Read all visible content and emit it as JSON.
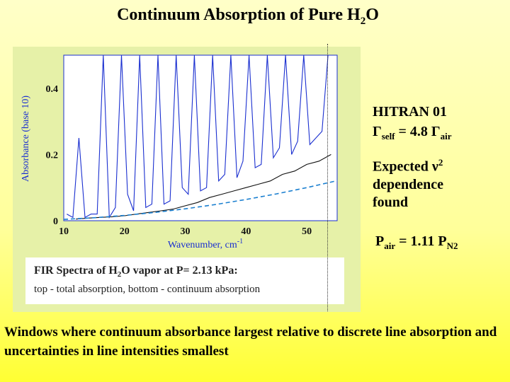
{
  "slide": {
    "title_prefix": "Continuum Absorption of Pure H",
    "title_sub": "2",
    "title_suffix": "O",
    "caption": {
      "line1_prefix": "FIR Spectra of H",
      "line1_sub": "2",
      "line1_suffix": "O vapor at P= 2.13 kPa:",
      "line2": "top - total absorption, bottom - continuum absorption"
    },
    "notes": {
      "hitran": "HITRAN 01",
      "gamma_prefix": "Γ",
      "gamma_sub1": "self",
      "gamma_mid": " = 4.8 Γ",
      "gamma_sub2": "air",
      "expected_prefix": "Expected ν",
      "expected_sup": "2",
      "expected_line2": "dependence",
      "expected_line3": "found",
      "pair_prefix": "P",
      "pair_sub1": "air",
      "pair_mid": " = 1.11 P",
      "pair_sub2": "N2"
    },
    "bottom_text": "Windows where continuum absorbance largest relative to discrete line absorption and uncertainties in line intensities smallest"
  },
  "chart_data": {
    "type": "line",
    "xlabel": "Wavenumber, cm",
    "xlabel_sup": "-1",
    "ylabel": "Absorbance (base 10)",
    "xlim": [
      10,
      55
    ],
    "ylim": [
      0,
      0.5
    ],
    "xticks": [
      "10",
      "20",
      "30",
      "40",
      "50"
    ],
    "yticks": [
      "0",
      "0.2",
      "0.4"
    ],
    "series": [
      {
        "color": "#1a2fd0",
        "x": [
          10.5,
          11.5,
          12.5,
          13.5,
          14.5,
          15.5,
          16.5,
          17.5,
          18.5,
          19.5,
          20.5,
          21.5,
          22.5,
          23.5,
          24.5,
          25.5,
          26.5,
          27.5,
          28.5,
          29.5,
          30.5,
          31.5,
          32.5,
          33.5,
          34.5,
          35.5,
          36.5,
          37.5,
          38.5,
          39.5,
          40.5,
          41.5,
          42.5,
          43.5,
          44.5,
          45.5,
          46.5,
          47.5,
          48.5,
          49.5,
          50.5,
          51.5,
          52.5,
          53.5
        ],
        "y": [
          0.02,
          0.01,
          0.25,
          0.01,
          0.02,
          0.02,
          0.5,
          0.01,
          0.04,
          0.5,
          0.08,
          0.03,
          0.5,
          0.04,
          0.05,
          0.5,
          0.05,
          0.06,
          0.5,
          0.1,
          0.08,
          0.5,
          0.09,
          0.1,
          0.5,
          0.12,
          0.14,
          0.5,
          0.13,
          0.18,
          0.5,
          0.16,
          0.17,
          0.5,
          0.19,
          0.22,
          0.5,
          0.2,
          0.24,
          0.5,
          0.23,
          0.25,
          0.27,
          0.5
        ]
      },
      {
        "color": "#111111",
        "x": [
          12,
          14,
          16,
          18,
          20,
          22,
          24,
          26,
          28,
          30,
          32,
          34,
          36,
          38,
          40,
          42,
          44,
          46,
          48,
          50,
          52,
          54
        ],
        "y": [
          0.005,
          0.008,
          0.01,
          0.012,
          0.015,
          0.02,
          0.025,
          0.03,
          0.035,
          0.045,
          0.055,
          0.07,
          0.08,
          0.09,
          0.1,
          0.11,
          0.12,
          0.14,
          0.15,
          0.17,
          0.18,
          0.2
        ]
      },
      {
        "color": "#1a7fd0",
        "dashed": true,
        "x": [
          10,
          15,
          20,
          25,
          30,
          35,
          40,
          45,
          50,
          55
        ],
        "y": [
          0.004,
          0.009,
          0.016,
          0.025,
          0.036,
          0.049,
          0.064,
          0.081,
          0.1,
          0.121
        ]
      }
    ]
  }
}
